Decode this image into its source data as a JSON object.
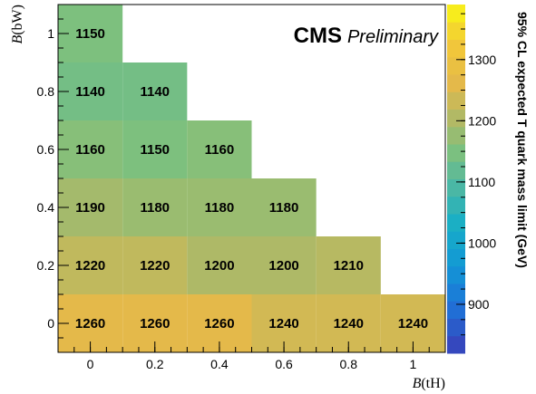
{
  "chart_data": {
    "type": "heatmap",
    "xlabel_symbol": "B",
    "xlabel_arg": "(tH)",
    "ylabel_symbol": "B",
    "ylabel_arg": "(bW)",
    "zlabel": "95% CL expected T quark mass limit (GeV)",
    "xlim": [
      -0.1,
      1.1
    ],
    "ylim": [
      -0.1,
      1.1
    ],
    "zlim": [
      820,
      1390
    ],
    "x_ticks": [
      "0",
      "0.2",
      "0.4",
      "0.6",
      "0.8",
      "1"
    ],
    "y_ticks": [
      "0",
      "0.2",
      "0.4",
      "0.6",
      "0.8",
      "1"
    ],
    "z_ticks": [
      "900",
      "1000",
      "1100",
      "1200",
      "1300"
    ],
    "cells": [
      {
        "x": 0.0,
        "y": 0.0,
        "value": 1260
      },
      {
        "x": 0.2,
        "y": 0.0,
        "value": 1260
      },
      {
        "x": 0.4,
        "y": 0.0,
        "value": 1260
      },
      {
        "x": 0.6,
        "y": 0.0,
        "value": 1240
      },
      {
        "x": 0.8,
        "y": 0.0,
        "value": 1240
      },
      {
        "x": 1.0,
        "y": 0.0,
        "value": 1240
      },
      {
        "x": 0.0,
        "y": 0.2,
        "value": 1220
      },
      {
        "x": 0.2,
        "y": 0.2,
        "value": 1220
      },
      {
        "x": 0.4,
        "y": 0.2,
        "value": 1200
      },
      {
        "x": 0.6,
        "y": 0.2,
        "value": 1200
      },
      {
        "x": 0.8,
        "y": 0.2,
        "value": 1210
      },
      {
        "x": 0.0,
        "y": 0.4,
        "value": 1190
      },
      {
        "x": 0.2,
        "y": 0.4,
        "value": 1180
      },
      {
        "x": 0.4,
        "y": 0.4,
        "value": 1180
      },
      {
        "x": 0.6,
        "y": 0.4,
        "value": 1180
      },
      {
        "x": 0.0,
        "y": 0.6,
        "value": 1160
      },
      {
        "x": 0.2,
        "y": 0.6,
        "value": 1150
      },
      {
        "x": 0.4,
        "y": 0.6,
        "value": 1160
      },
      {
        "x": 0.0,
        "y": 0.8,
        "value": 1140
      },
      {
        "x": 0.2,
        "y": 0.8,
        "value": 1140
      },
      {
        "x": 0.0,
        "y": 1.0,
        "value": 1150
      }
    ],
    "color_stops": [
      {
        "v": 820,
        "c": "#3a3eb8"
      },
      {
        "v": 900,
        "c": "#1e74d8"
      },
      {
        "v": 960,
        "c": "#1396d6"
      },
      {
        "v": 1030,
        "c": "#18aec6"
      },
      {
        "v": 1100,
        "c": "#52b8a0"
      },
      {
        "v": 1150,
        "c": "#7dc07e"
      },
      {
        "v": 1200,
        "c": "#aeb967"
      },
      {
        "v": 1260,
        "c": "#e4b94a"
      },
      {
        "v": 1330,
        "c": "#f3c938"
      },
      {
        "v": 1390,
        "c": "#f8f715"
      }
    ],
    "annotation_bold": "CMS",
    "annotation_italic": "Preliminary"
  }
}
